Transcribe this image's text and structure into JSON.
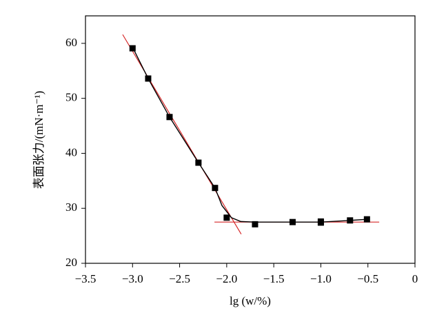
{
  "chart_data": {
    "type": "scatter",
    "x_label": "lg (w/%)",
    "y_label": "表面张力/(mN·m⁻¹)",
    "xlim": [
      -3.5,
      0
    ],
    "ylim": [
      20,
      65
    ],
    "xticks": [
      {
        "value": -3.5,
        "label": "−3.5"
      },
      {
        "value": -3.0,
        "label": "−3.0"
      },
      {
        "value": -2.5,
        "label": "−2.5"
      },
      {
        "value": -2.0,
        "label": "−2.0"
      },
      {
        "value": -1.5,
        "label": "−1.5"
      },
      {
        "value": -1.0,
        "label": "−1.0"
      },
      {
        "value": -0.5,
        "label": "−0.5"
      },
      0
    ],
    "yticks": [
      20,
      30,
      40,
      50,
      60
    ],
    "series": [
      {
        "color": "#000000",
        "marker": "square",
        "x": [
          -3.0,
          -2.834,
          -2.607,
          -2.3,
          -2.124,
          -2.0,
          -1.699,
          -1.3,
          -1.0,
          -1.0,
          -0.69,
          -0.51
        ],
        "values": [
          59.1,
          53.6,
          46.6,
          38.3,
          33.7,
          28.3,
          27.1,
          27.5,
          27.6,
          27.4,
          27.8,
          28.0
        ]
      }
    ],
    "curve": {
      "color": "#000000",
      "x": [
        -3.0,
        -2.834,
        -2.607,
        -2.3,
        -2.124,
        -2.05,
        -1.95,
        -1.85,
        -1.7,
        -1.3,
        -1.0,
        -0.69,
        -0.51
      ],
      "values": [
        59.3,
        53.6,
        46.6,
        38.3,
        33.7,
        30.5,
        28.3,
        27.6,
        27.5,
        27.5,
        27.5,
        27.8,
        28.0
      ]
    },
    "fit_lines": [
      {
        "color": "#d62728",
        "x": [
          -3.105,
          -1.846
        ],
        "values": [
          61.6,
          25.3
        ]
      },
      {
        "color": "#d62728",
        "x": [
          -2.13,
          -0.38
        ],
        "values": [
          27.5,
          27.5
        ]
      }
    ]
  }
}
